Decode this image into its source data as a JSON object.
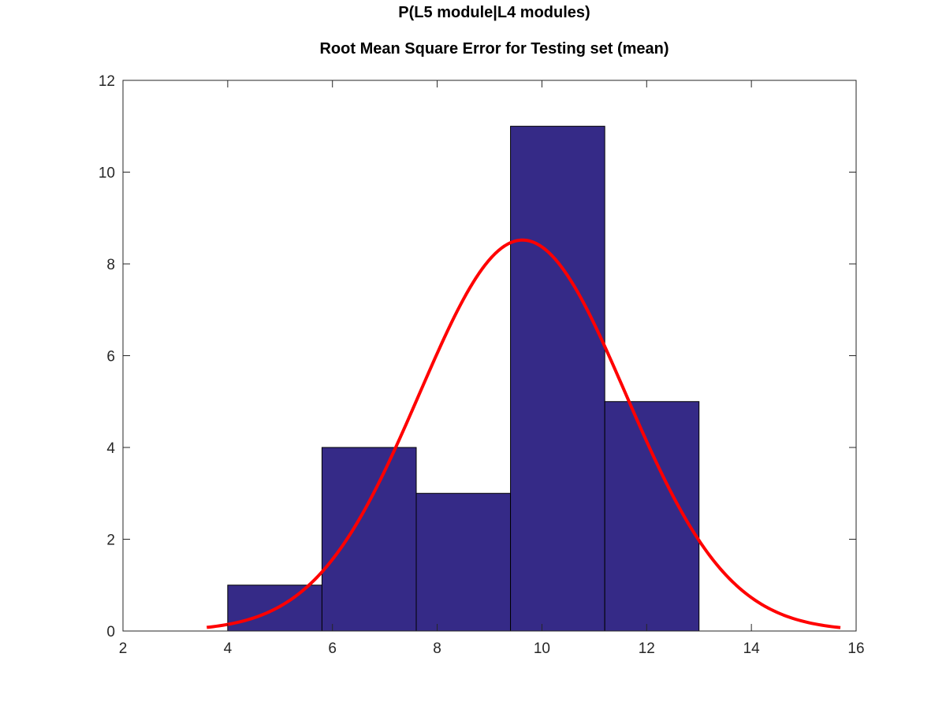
{
  "chart_data": {
    "type": "bar",
    "title": "P(L5 module|L4 modules)",
    "subtitle": "Root Mean Square Error for Testing set (mean)",
    "xlabel": "",
    "ylabel": "",
    "xlim": [
      2,
      16
    ],
    "ylim": [
      0,
      12
    ],
    "xticks": [
      2,
      4,
      6,
      8,
      10,
      12,
      14,
      16
    ],
    "yticks": [
      0,
      2,
      4,
      6,
      8,
      10,
      12
    ],
    "grid": false,
    "histogram": {
      "bins": [
        {
          "x0": 4.0,
          "x1": 5.8,
          "count": 1
        },
        {
          "x0": 5.8,
          "x1": 7.6,
          "count": 4
        },
        {
          "x0": 7.6,
          "x1": 9.4,
          "count": 3
        },
        {
          "x0": 9.4,
          "x1": 11.2,
          "count": 11
        },
        {
          "x0": 11.2,
          "x1": 13.0,
          "count": 5
        }
      ],
      "color": "#352a87",
      "edge_color": "#000000"
    },
    "fit_curve": {
      "type": "normal",
      "peak": 8.52,
      "mu": 9.63,
      "sigma": 1.97,
      "x_range": [
        3.6,
        15.7
      ],
      "color": "#ff0000"
    }
  }
}
